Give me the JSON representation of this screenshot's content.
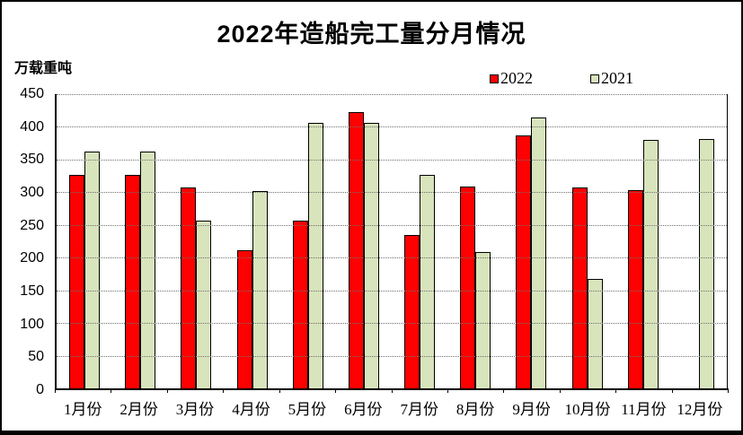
{
  "chart_data": {
    "type": "bar",
    "title": "2022年造船完工量分月情况",
    "ylabel": "万载重吨",
    "xlabel": "",
    "categories": [
      "1月份",
      "2月份",
      "3月份",
      "4月份",
      "5月份",
      "6月份",
      "7月份",
      "8月份",
      "9月份",
      "10月份",
      "11月份",
      "12月份"
    ],
    "series": [
      {
        "name": "2022",
        "color": "#ff0000",
        "values": [
          327,
          327,
          308,
          211,
          256,
          423,
          235,
          309,
          387,
          307,
          303,
          null
        ]
      },
      {
        "name": "2021",
        "color": "#d8e4bc",
        "values": [
          362,
          362,
          256,
          302,
          406,
          406,
          327,
          209,
          414,
          168,
          380,
          381
        ]
      }
    ],
    "ylim": [
      0,
      450
    ],
    "ytick_step": 50,
    "yticks": [
      0,
      50,
      100,
      150,
      200,
      250,
      300,
      350,
      400,
      450
    ],
    "grid": "horizontal-dotted",
    "legend_position": "top-right",
    "bar_border_color": "#000000"
  }
}
